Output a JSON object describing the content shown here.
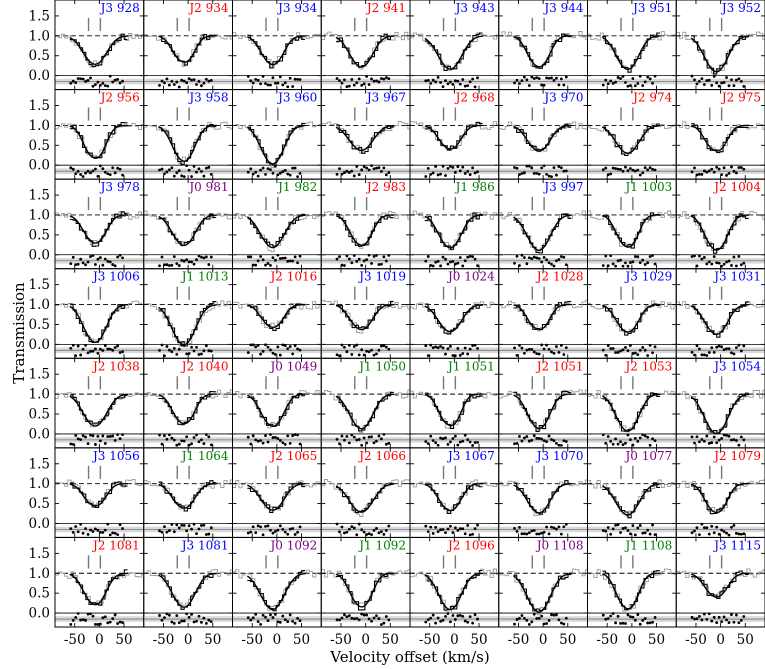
{
  "chart_data": {
    "type": "line",
    "xlabel": "Velocity offset (km/s)",
    "ylabel": "Transmission",
    "x_ticks": [
      -50,
      0,
      50
    ],
    "y_ticks": [
      -0.0,
      0.5,
      1.0,
      1.5
    ],
    "y_tick_labels": [
      "0.0",
      "0.5",
      "1.0",
      "1.5"
    ],
    "x_tick_labels": [
      "-50",
      "0",
      "50"
    ],
    "xlim": [
      -90,
      90
    ],
    "ylim": [
      -0.35,
      1.9
    ],
    "grid": false,
    "residual_level": -0.15,
    "continuum_level": 1.0,
    "label_colors": {
      "J0": "#800080",
      "J1": "#008000",
      "J2": "#ff0000",
      "J3": "#0000ff"
    },
    "panels": [
      {
        "label": "J3 928",
        "level": "J3"
      },
      {
        "label": "J2 934",
        "level": "J2"
      },
      {
        "label": "J3 934",
        "level": "J3"
      },
      {
        "label": "J2 941",
        "level": "J2"
      },
      {
        "label": "J3 943",
        "level": "J3"
      },
      {
        "label": "J3 944",
        "level": "J3"
      },
      {
        "label": "J3 951",
        "level": "J3"
      },
      {
        "label": "J3 952",
        "level": "J3"
      },
      {
        "label": "J2 956",
        "level": "J2"
      },
      {
        "label": "J3 958",
        "level": "J3"
      },
      {
        "label": "J3 960",
        "level": "J3"
      },
      {
        "label": "J3 967",
        "level": "J3"
      },
      {
        "label": "J2 968",
        "level": "J2"
      },
      {
        "label": "J3 970",
        "level": "J3"
      },
      {
        "label": "J2 974",
        "level": "J2"
      },
      {
        "label": "J2 975",
        "level": "J2"
      },
      {
        "label": "J3 978",
        "level": "J3"
      },
      {
        "label": "J0 981",
        "level": "J0"
      },
      {
        "label": "J1 982",
        "level": "J1"
      },
      {
        "label": "J2 983",
        "level": "J2"
      },
      {
        "label": "J1 986",
        "level": "J1"
      },
      {
        "label": "J3 997",
        "level": "J3"
      },
      {
        "label": "J1 1003",
        "level": "J1"
      },
      {
        "label": "J2 1004",
        "level": "J2"
      },
      {
        "label": "J3 1006",
        "level": "J3"
      },
      {
        "label": "J1 1013",
        "level": "J1"
      },
      {
        "label": "J2 1016",
        "level": "J2"
      },
      {
        "label": "J3 1019",
        "level": "J3"
      },
      {
        "label": "J0 1024",
        "level": "J0"
      },
      {
        "label": "J2 1028",
        "level": "J2"
      },
      {
        "label": "J3 1029",
        "level": "J3"
      },
      {
        "label": "J3 1031",
        "level": "J3"
      },
      {
        "label": "J2 1038",
        "level": "J2"
      },
      {
        "label": "J2 1040",
        "level": "J2"
      },
      {
        "label": "J0 1049",
        "level": "J0"
      },
      {
        "label": "J1 1050",
        "level": "J1"
      },
      {
        "label": "J1 1051",
        "level": "J1"
      },
      {
        "label": "J2 1051",
        "level": "J2"
      },
      {
        "label": "J2 1053",
        "level": "J2"
      },
      {
        "label": "J3 1054",
        "level": "J3"
      },
      {
        "label": "J3 1056",
        "level": "J3"
      },
      {
        "label": "J1 1064",
        "level": "J1"
      },
      {
        "label": "J2 1065",
        "level": "J2"
      },
      {
        "label": "J2 1066",
        "level": "J2"
      },
      {
        "label": "J3 1067",
        "level": "J3"
      },
      {
        "label": "J3 1070",
        "level": "J3"
      },
      {
        "label": "J0 1077",
        "level": "J0"
      },
      {
        "label": "J2 1079",
        "level": "J2"
      },
      {
        "label": "J2 1081",
        "level": "J2"
      },
      {
        "label": "J3 1081",
        "level": "J3"
      },
      {
        "label": "J0 1092",
        "level": "J0"
      },
      {
        "label": "J1 1092",
        "level": "J1"
      },
      {
        "label": "J2 1096",
        "level": "J2"
      },
      {
        "label": "J0 1108",
        "level": "J0"
      },
      {
        "label": "J1 1108",
        "level": "J1"
      },
      {
        "label": "J3 1115",
        "level": "J3"
      }
    ]
  }
}
